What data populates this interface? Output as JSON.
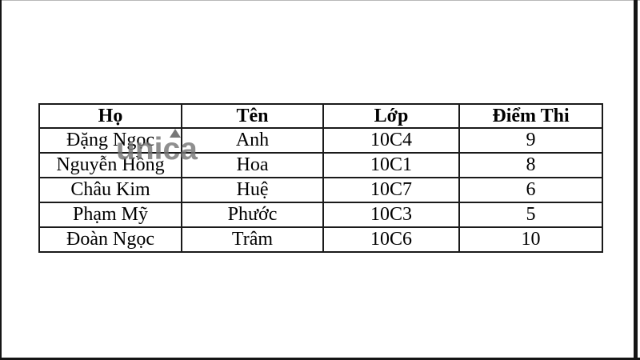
{
  "colors": {
    "page_bg": "#ffffff",
    "table_border": "#1a1a1a",
    "watermark": "#767676"
  },
  "watermark": {
    "text": "unica"
  },
  "table": {
    "headers": [
      "Họ",
      "Tên",
      "Lớp",
      "Điểm Thi"
    ],
    "rows": [
      [
        "Đặng Ngọc",
        "Anh",
        "10C4",
        "9"
      ],
      [
        "Nguyễn Hồng",
        "Hoa",
        "10C1",
        "8"
      ],
      [
        "Châu Kim",
        "Huệ",
        "10C7",
        "6"
      ],
      [
        "Phạm Mỹ",
        "Phước",
        "10C3",
        "5"
      ],
      [
        "Đoàn Ngọc",
        "Trâm",
        "10C6",
        "10"
      ]
    ]
  },
  "chart_data": {
    "type": "table",
    "title": "",
    "columns": [
      "Họ",
      "Tên",
      "Lớp",
      "Điểm Thi"
    ],
    "rows": [
      [
        "Đặng Ngọc",
        "Anh",
        "10C4",
        9
      ],
      [
        "Nguyễn Hồng",
        "Hoa",
        "10C1",
        8
      ],
      [
        "Châu Kim",
        "Huệ",
        "10C7",
        6
      ],
      [
        "Phạm Mỹ",
        "Phước",
        "10C3",
        5
      ],
      [
        "Đoàn Ngọc",
        "Trâm",
        "10C6",
        10
      ]
    ]
  }
}
